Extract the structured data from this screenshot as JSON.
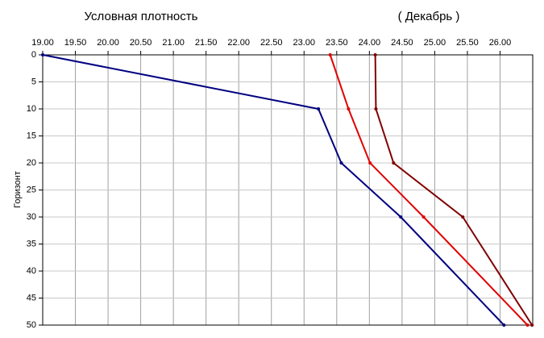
{
  "chart_data": {
    "type": "line",
    "title": "Условная плотность",
    "subtitle": "( Декабрь )",
    "y_label": "Горизонт",
    "orientation": "depth",
    "xlim": [
      19,
      26.5
    ],
    "ylim": [
      0,
      50
    ],
    "y_inverted": true,
    "grid": true,
    "xticks": [
      {
        "value": 19,
        "label": "19.00"
      },
      {
        "value": 19.5,
        "label": "19.50"
      },
      {
        "value": 20,
        "label": "20.00"
      },
      {
        "value": 20.5,
        "label": "20.50"
      },
      {
        "value": 21,
        "label": "21.00"
      },
      {
        "value": 21.5,
        "label": "21.50"
      },
      {
        "value": 22,
        "label": "22.00"
      },
      {
        "value": 22.5,
        "label": "22.50"
      },
      {
        "value": 23,
        "label": "23.00"
      },
      {
        "value": 23.5,
        "label": "23.50"
      },
      {
        "value": 24,
        "label": "24.00"
      },
      {
        "value": 24.5,
        "label": "24.50"
      },
      {
        "value": 25,
        "label": "25.00"
      },
      {
        "value": 25.5,
        "label": "25.50"
      },
      {
        "value": 26,
        "label": "26.00"
      }
    ],
    "yticks": [
      0,
      5,
      10,
      15,
      20,
      25,
      30,
      35,
      40,
      45,
      50
    ],
    "y": [
      0,
      10,
      20,
      30,
      50
    ],
    "series": [
      {
        "color": "#000080",
        "x": [
          19.0,
          23.22,
          23.57,
          24.48,
          26.06
        ]
      },
      {
        "color": "#e00000",
        "x": [
          23.4,
          23.68,
          24.01,
          24.83,
          26.42
        ]
      },
      {
        "color": "#800000",
        "x": [
          24.09,
          24.1,
          24.37,
          25.43,
          26.49
        ]
      }
    ]
  }
}
